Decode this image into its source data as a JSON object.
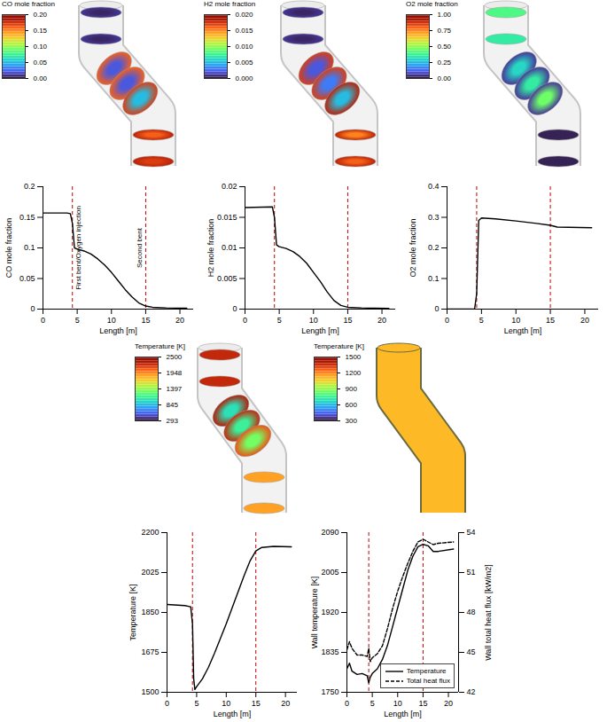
{
  "chart_data": [
    {
      "type": "render",
      "colorbar_title": "CO mole fraction",
      "colorbar_lim": [
        0,
        0.2
      ],
      "colorbar_ticks": [
        {
          "value": 0,
          "label": "0.00"
        },
        0.05,
        {
          "value": 0.1,
          "label": "0.10"
        },
        0.15,
        {
          "value": 0.2,
          "label": "0.20"
        }
      ],
      "color": "turbo",
      "sections": [
        {
          "edge": 0.01,
          "core": 0.005
        },
        {
          "edge": 0.01,
          "core": 0.005
        },
        {
          "edge": 0.16,
          "core": 0.02
        },
        {
          "edge": 0.16,
          "core": 0.02
        },
        {
          "edge": 0.17,
          "core": 0.05
        },
        {
          "edge": 0.18,
          "core": 0.16
        },
        {
          "edge": 0.18,
          "core": 0.17
        }
      ]
    },
    {
      "type": "render",
      "colorbar_title": "H2 mole fraction",
      "colorbar_lim": [
        0,
        0.02
      ],
      "colorbar_ticks": [
        {
          "value": 0,
          "label": "0.000"
        },
        0.005,
        {
          "value": 0.01,
          "label": "0.010"
        },
        0.015,
        {
          "value": 0.02,
          "label": "0.020"
        }
      ],
      "color": "turbo",
      "sections": [
        {
          "edge": 0.001,
          "core": 0.0005
        },
        {
          "edge": 0.001,
          "core": 0.0005
        },
        {
          "edge": 0.017,
          "core": 0.002
        },
        {
          "edge": 0.017,
          "core": 0.003
        },
        {
          "edge": 0.018,
          "core": 0.005
        },
        {
          "edge": 0.018,
          "core": 0.015
        },
        {
          "edge": 0.018,
          "core": 0.016
        }
      ]
    },
    {
      "type": "render",
      "colorbar_title": "O2 mole fraction",
      "colorbar_lim": [
        0,
        1
      ],
      "colorbar_ticks": [
        {
          "value": 0,
          "label": "0.00"
        },
        0.25,
        {
          "value": 0.5,
          "label": "0.50"
        },
        0.75,
        {
          "value": 1,
          "label": "1.00"
        }
      ],
      "color": "turbo",
      "sections": [
        {
          "edge": 0.4,
          "core": 0.4
        },
        {
          "edge": 0.35,
          "core": 0.35
        },
        {
          "edge": 0.05,
          "core": 0.3
        },
        {
          "edge": 0.05,
          "core": 0.35
        },
        {
          "edge": 0.05,
          "core": 0.45
        },
        {
          "edge": 0.02,
          "core": 0.02
        },
        {
          "edge": 0.02,
          "core": 0.02
        }
      ]
    },
    {
      "type": "line",
      "x_label": "Length [m]",
      "y_label": "CO mole fraction",
      "color": "#000000",
      "xlim": [
        0,
        22
      ],
      "xticks": [
        0,
        5,
        10,
        15,
        20
      ],
      "ylim": [
        0,
        0.2
      ],
      "yticks": [
        0,
        0.05,
        0.1,
        0.15,
        0.2
      ],
      "reference_lines": [
        4.3,
        15
      ],
      "annotations": [
        {
          "text": "First bent/Oxygen injection",
          "x": 4.3
        },
        {
          "text": "Second bent",
          "x": 15
        }
      ],
      "x": [
        0,
        3.5,
        4.0,
        4.3,
        4.6,
        5,
        6,
        7,
        8,
        9,
        10,
        11,
        12,
        13,
        14,
        15,
        16,
        18,
        21
      ],
      "values": [
        0.157,
        0.157,
        0.156,
        0.14,
        0.1,
        0.098,
        0.095,
        0.09,
        0.082,
        0.072,
        0.06,
        0.046,
        0.032,
        0.02,
        0.01,
        0.005,
        0.003,
        0.002,
        0.0015
      ]
    },
    {
      "type": "line",
      "x_label": "Length [m]",
      "y_label": "H2 mole fraction",
      "color": "#000000",
      "xlim": [
        0,
        22
      ],
      "xticks": [
        0,
        5,
        10,
        15,
        20
      ],
      "ylim": [
        0,
        0.02
      ],
      "yticks": [
        0,
        0.005,
        0.01,
        0.015,
        0.02
      ],
      "reference_lines": [
        4.3,
        15
      ],
      "x": [
        0,
        4,
        4.3,
        4.6,
        5,
        6,
        7,
        8,
        9,
        10,
        11,
        12,
        13,
        14,
        15,
        17,
        21
      ],
      "values": [
        0.0166,
        0.0167,
        0.015,
        0.0105,
        0.0102,
        0.0099,
        0.0094,
        0.0086,
        0.0075,
        0.006,
        0.0045,
        0.0028,
        0.0014,
        0.0006,
        0.0003,
        0.0002,
        0.0001
      ]
    },
    {
      "type": "line",
      "x_label": "Length [m]",
      "y_label": "O2 mole fraction",
      "color": "#000000",
      "xlim": [
        0,
        22
      ],
      "xticks": [
        0,
        5,
        10,
        15,
        20
      ],
      "ylim": [
        0,
        0.4
      ],
      "yticks": [
        0,
        0.1,
        0.2,
        0.3,
        0.4
      ],
      "reference_lines": [
        4.3,
        15
      ],
      "x": [
        0,
        4,
        4.3,
        4.6,
        5,
        7,
        10,
        13,
        15,
        16,
        21
      ],
      "values": [
        0,
        0,
        0.05,
        0.29,
        0.298,
        0.295,
        0.288,
        0.28,
        0.274,
        0.268,
        0.266
      ]
    },
    {
      "type": "render",
      "colorbar_title": "Temperature [K]",
      "colorbar_lim": [
        293,
        2500
      ],
      "colorbar_ticks": [
        293,
        845,
        1397,
        1948,
        2500
      ],
      "color": "turbo",
      "sections": [
        {
          "edge": 2250,
          "core": 2250
        },
        {
          "edge": 2250,
          "core": 2250
        },
        {
          "edge": 2300,
          "core": 1000
        },
        {
          "edge": 2250,
          "core": 1100
        },
        {
          "edge": 2100,
          "core": 1300
        },
        {
          "edge": 1850,
          "core": 1850
        },
        {
          "edge": 1850,
          "core": 1850
        }
      ]
    },
    {
      "type": "render",
      "colorbar_title": "Temperature [K]",
      "colorbar_lim": [
        300,
        1500
      ],
      "colorbar_ticks": [
        300,
        600,
        900,
        1200,
        1500
      ],
      "color": "turbo",
      "surface": 1100
    },
    {
      "type": "line",
      "x_label": "Length [m]",
      "y_label": "Temperature [K]",
      "color": "#000000",
      "xlim": [
        0,
        22
      ],
      "xticks": [
        0,
        5,
        10,
        15,
        20
      ],
      "ylim": [
        1500,
        2200
      ],
      "yticks": [
        1500,
        1675,
        1850,
        2025,
        2200
      ],
      "reference_lines": [
        4.3,
        15
      ],
      "x": [
        0,
        3,
        4,
        4.3,
        4.5,
        4.7,
        5,
        6,
        7,
        8,
        9,
        10,
        11,
        12,
        13,
        14,
        15,
        16,
        18,
        21
      ],
      "values": [
        1885,
        1880,
        1875,
        1800,
        1560,
        1512,
        1525,
        1560,
        1610,
        1670,
        1735,
        1800,
        1870,
        1940,
        2010,
        2075,
        2120,
        2135,
        2140,
        2138
      ]
    },
    {
      "type": "line",
      "x_label": "Length [m]",
      "y_label": "Wall temperature [K]",
      "y2_label": "Wall total heat flux [kW/m2]",
      "xlim": [
        0,
        22
      ],
      "xticks": [
        0,
        5,
        10,
        15,
        20
      ],
      "ylim": [
        1750,
        2090
      ],
      "yticks": [
        1750,
        1835,
        1920,
        2005,
        2090
      ],
      "y2lim": [
        42,
        54
      ],
      "y2ticks": [
        42,
        45,
        48,
        51,
        54
      ],
      "legend": "lower right",
      "reference_lines": [
        4.3,
        15
      ],
      "x": [
        0,
        0.5,
        1,
        2,
        3,
        4,
        4.3,
        4.6,
        5,
        6,
        7,
        8,
        9,
        10,
        11,
        12,
        13,
        14,
        15,
        16,
        17,
        18,
        21
      ],
      "series": [
        {
          "name": "Temperature",
          "color": "#000000",
          "line_style": "solid",
          "values": [
            1800,
            1812,
            1795,
            1788,
            1790,
            1785,
            1770,
            1782,
            1790,
            1800,
            1820,
            1850,
            1890,
            1930,
            1970,
            2010,
            2040,
            2060,
            2065,
            2062,
            2050,
            2050,
            2055
          ]
        },
        {
          "name": "Total heat flux",
          "color": "#000000",
          "line_style": "dashed",
          "axis": "y2",
          "values": [
            45.2,
            45.8,
            45.3,
            44.8,
            44.8,
            44.7,
            45.3,
            44.3,
            44.6,
            44.9,
            45.5,
            46.8,
            48.3,
            49.6,
            50.7,
            51.7,
            52.6,
            53.3,
            53.5,
            53.3,
            53.1,
            53.2,
            53.3
          ]
        }
      ]
    }
  ]
}
